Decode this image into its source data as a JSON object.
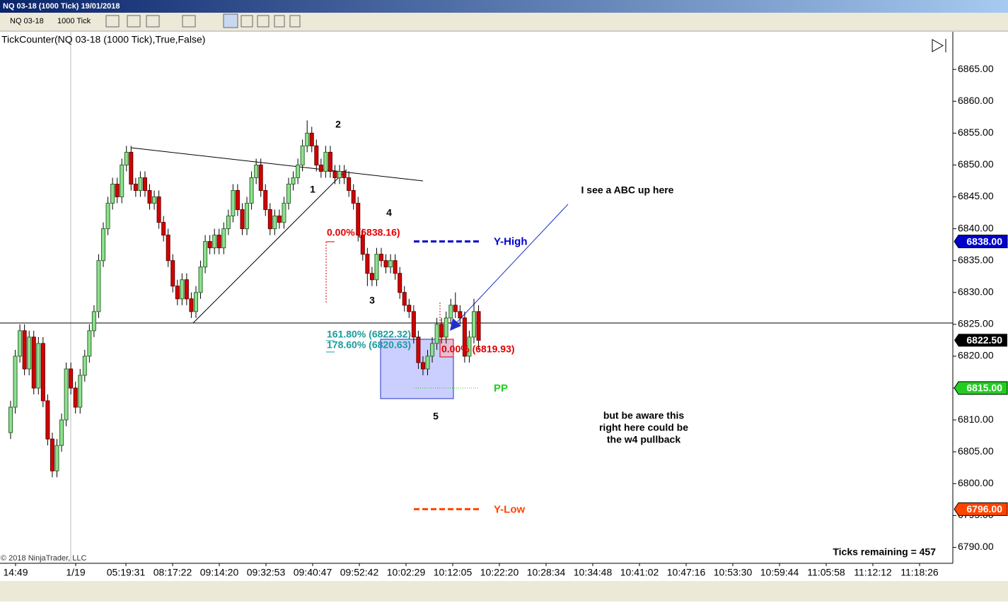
{
  "window_title": "NQ 03-18 (1000 Tick)  19/01/2018",
  "toolbar": {
    "instrument": "NQ 03-18",
    "period": "1000 Tick"
  },
  "chart_data": {
    "type": "candlestick",
    "title": "TickCounter(NQ 03-18 (1000 Tick),True,False)",
    "x_labels": [
      "14:49",
      "1/19",
      "05:19:31",
      "08:17:22",
      "09:14:20",
      "09:32:53",
      "09:40:47",
      "09:52:42",
      "10:02:29",
      "10:12:05",
      "10:22:20",
      "10:28:34",
      "10:34:48",
      "10:41:02",
      "10:47:16",
      "10:53:30",
      "10:59:44",
      "11:05:58",
      "11:12:12",
      "11:18:26"
    ],
    "ylim": [
      6787.5,
      6870.9
    ],
    "yticks": [
      {
        "value": 6790,
        "label": "6790.00"
      },
      {
        "value": 6795,
        "label": "6795.00"
      },
      {
        "value": 6800,
        "label": "6800.00"
      },
      {
        "value": 6805,
        "label": "6805.00"
      },
      {
        "value": 6810,
        "label": "6810.00"
      },
      {
        "value": 6815,
        "label": "6815.00"
      },
      {
        "value": 6820,
        "label": "6820.00"
      },
      {
        "value": 6825,
        "label": "6825.00"
      },
      {
        "value": 6830,
        "label": "6830.00"
      },
      {
        "value": 6835,
        "label": "6835.00"
      },
      {
        "value": 6840,
        "label": "6840.00"
      },
      {
        "value": 6845,
        "label": "6845.00"
      },
      {
        "value": 6850,
        "label": "6850.00"
      },
      {
        "value": 6855,
        "label": "6855.00"
      },
      {
        "value": 6860,
        "label": "6860.00"
      },
      {
        "value": 6865,
        "label": "6865.00"
      }
    ],
    "up_color": "#8fe08f",
    "down_color": "#d40000",
    "open": [
      6808,
      6812,
      6820,
      6824,
      6818,
      6823,
      6815,
      6822,
      6813,
      6807,
      6802,
      6806,
      6810,
      6818,
      6815,
      6812,
      6817,
      6820,
      6824,
      6827,
      6835,
      6840,
      6844,
      6847,
      6845,
      6850,
      6852,
      6847,
      6846,
      6848,
      6846,
      6844,
      6845,
      6841,
      6839,
      6835,
      6831,
      6829,
      6832,
      6829,
      6827,
      6830,
      6834,
      6838,
      6837,
      6839,
      6837,
      6840,
      6842,
      6846,
      6843,
      6840,
      6844,
      6848,
      6850,
      6846,
      6843,
      6840,
      6842,
      6841,
      6844,
      6847,
      6848,
      6850,
      6853,
      6855,
      6853,
      6850,
      6849,
      6852,
      6849,
      6848,
      6849,
      6848,
      6846,
      6844,
      6839,
      6836,
      6833,
      6832,
      6836,
      6835,
      6834,
      6835,
      6833,
      6830,
      6828,
      6827,
      6823,
      6819,
      6818,
      6820,
      6822,
      6825,
      6823,
      6826,
      6828,
      6827,
      6826,
      6820,
      6823,
      6827
    ],
    "high": [
      6813,
      6821,
      6825,
      6825,
      6824,
      6824,
      6823,
      6823,
      6814,
      6808,
      6807,
      6811,
      6819,
      6819,
      6816,
      6818,
      6821,
      6825,
      6828,
      6836,
      6841,
      6845,
      6848,
      6848,
      6851,
      6853,
      6853,
      6848,
      6849,
      6849,
      6847,
      6846,
      6846,
      6842,
      6840,
      6836,
      6832,
      6833,
      6833,
      6830,
      6831,
      6835,
      6839,
      6839,
      6840,
      6840,
      6841,
      6843,
      6847,
      6847,
      6844,
      6845,
      6849,
      6851,
      6851,
      6847,
      6844,
      6843,
      6843,
      6845,
      6848,
      6849,
      6851,
      6854,
      6857,
      6856,
      6854,
      6851,
      6853,
      6853,
      6850,
      6850,
      6850,
      6849,
      6847,
      6845,
      6840,
      6837,
      6834,
      6837,
      6837,
      6836,
      6836,
      6836,
      6834,
      6831,
      6829,
      6828,
      6824,
      6820,
      6821,
      6823,
      6826,
      6826,
      6827,
      6829,
      6830,
      6828,
      6827,
      6824,
      6829,
      6828
    ],
    "low": [
      6807,
      6811,
      6819,
      6817,
      6817,
      6814,
      6814,
      6812,
      6806,
      6801,
      6801,
      6805,
      6809,
      6814,
      6811,
      6811,
      6816,
      6819,
      6823,
      6826,
      6834,
      6839,
      6843,
      6844,
      6844,
      6849,
      6846,
      6845,
      6845,
      6845,
      6843,
      6843,
      6840,
      6838,
      6834,
      6830,
      6828,
      6828,
      6828,
      6826,
      6826,
      6829,
      6833,
      6836,
      6836,
      6836,
      6836,
      6839,
      6841,
      6842,
      6839,
      6839,
      6843,
      6847,
      6845,
      6842,
      6839,
      6839,
      6840,
      6840,
      6843,
      6846,
      6847,
      6849,
      6852,
      6852,
      6849,
      6848,
      6848,
      6848,
      6847,
      6847,
      6847,
      6845,
      6843,
      6838,
      6835,
      6831,
      6831,
      6831,
      6834,
      6833,
      6833,
      6832,
      6829,
      6827,
      6826,
      6822,
      6818,
      6817,
      6817,
      6819,
      6821,
      6822,
      6822,
      6825,
      6826,
      6825,
      6819,
      6819,
      6822,
      6821
    ],
    "close": [
      6812,
      6820,
      6824,
      6818,
      6823,
      6815,
      6822,
      6813,
      6807,
      6802,
      6806,
      6810,
      6818,
      6815,
      6812,
      6817,
      6820,
      6824,
      6827,
      6835,
      6840,
      6844,
      6847,
      6845,
      6850,
      6852,
      6847,
      6846,
      6848,
      6846,
      6844,
      6845,
      6841,
      6839,
      6835,
      6831,
      6829,
      6832,
      6829,
      6827,
      6830,
      6834,
      6838,
      6837,
      6839,
      6837,
      6840,
      6842,
      6846,
      6843,
      6840,
      6844,
      6848,
      6850,
      6846,
      6843,
      6840,
      6842,
      6841,
      6844,
      6847,
      6848,
      6850,
      6853,
      6855,
      6853,
      6850,
      6849,
      6852,
      6849,
      6848,
      6849,
      6848,
      6846,
      6844,
      6839,
      6836,
      6833,
      6832,
      6836,
      6835,
      6834,
      6835,
      6833,
      6830,
      6828,
      6827,
      6823,
      6819,
      6818,
      6820,
      6822,
      6825,
      6823,
      6826,
      6828,
      6827,
      6826,
      6820,
      6823,
      6827,
      6822.5
    ],
    "levels": [
      {
        "name": "Y-High",
        "value": 6838,
        "label": "6838.00",
        "color": "#0000cc"
      },
      {
        "name": "PP",
        "value": 6815,
        "label": "6815.00",
        "color": "#22cc22"
      },
      {
        "name": "Y-Low",
        "value": 6796,
        "label": "6796.00",
        "color": "#ff4400"
      }
    ],
    "current_price": {
      "value": 6822.5,
      "label": "6822.50"
    },
    "waves": [
      "1",
      "2",
      "3",
      "4",
      "5"
    ],
    "fib_labels": [
      "0.00% (6838.16)",
      "161.80% (6822.32)",
      "178.60% (6820.63)",
      "0.00% (6819.93)"
    ],
    "notes": [
      "I see a ABC up here",
      "but be aware this",
      "right here could be",
      "the w4 pullback"
    ],
    "ticks_remaining": "Ticks remaining = 457",
    "copyright": "© 2018 NinjaTrader, LLC"
  }
}
